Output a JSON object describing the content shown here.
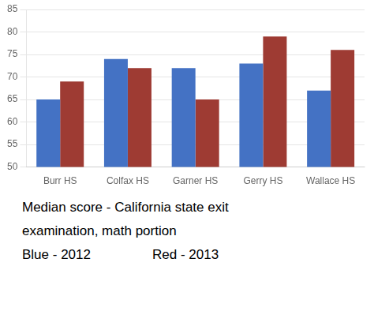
{
  "chart_data": {
    "type": "bar",
    "categories": [
      "Burr HS",
      "Colfax HS",
      "Garner HS",
      "Gerry HS",
      "Wallace HS"
    ],
    "series": [
      {
        "color": "#4472C4",
        "values": [
          65,
          74,
          72,
          73,
          67
        ]
      },
      {
        "color": "#9E3B33",
        "values": [
          69,
          72,
          65,
          79,
          76
        ]
      }
    ],
    "ylim": [
      50,
      85
    ],
    "yticks": [
      50,
      55,
      60,
      65,
      70,
      75,
      80,
      85
    ],
    "grid": true,
    "annotations": [
      "Median score - California state exit",
      "examination, math portion",
      "Blue - 2012",
      "Red - 2013"
    ]
  }
}
